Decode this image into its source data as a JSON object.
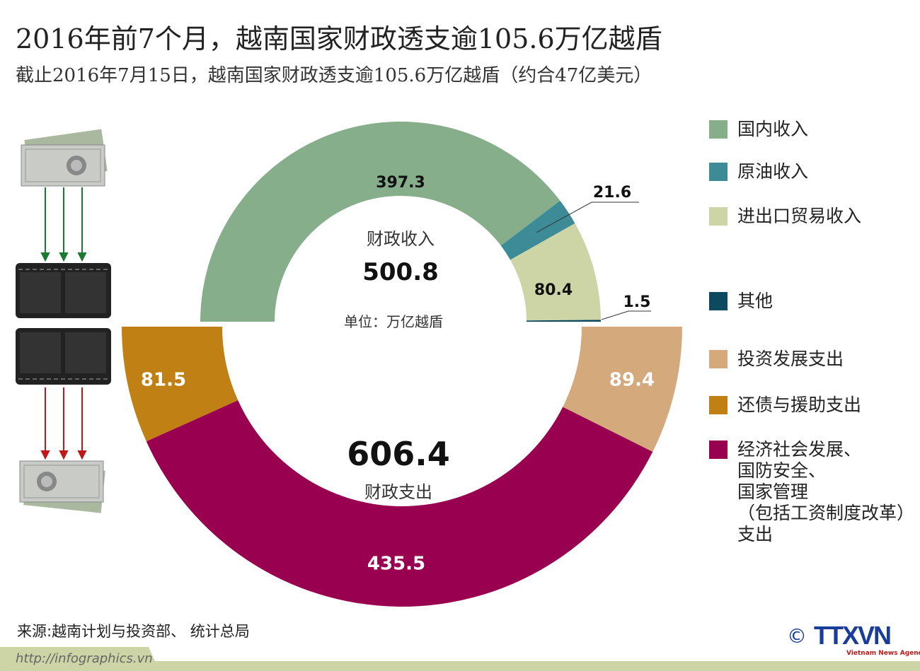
{
  "title": "2016年前7个月，越南国家财政透支逾105.6万亿越盾",
  "subtitle": "截止2016年7月15日，越南国家财政透支逾105.6万亿越盾（约合47亿美元）",
  "chart_data": [
    {
      "type": "pie",
      "variant": "half-donut-top",
      "title": "财政收入",
      "total": "500.8",
      "unit": "单位：万亿越盾",
      "categories": [
        "国内收入",
        "原油收入",
        "进出口贸易收入",
        "其他"
      ],
      "values": [
        397.3,
        21.6,
        80.4,
        1.5
      ],
      "labels": [
        "397.3",
        "21.6",
        "80.4",
        "1.5"
      ],
      "colors": [
        "#86ae8a",
        "#3c8b97",
        "#cdd5a6",
        "#0d4a60"
      ]
    },
    {
      "type": "pie",
      "variant": "half-donut-bottom",
      "title": "财政支出",
      "total": "606.4",
      "categories": [
        "还债与援助支出",
        "经济社会发展、国防安全、国家管理（包括工资制度改革）支出",
        "投资发展支出"
      ],
      "values": [
        81.5,
        435.5,
        89.4
      ],
      "labels": [
        "81.5",
        "435.5",
        "89.4"
      ],
      "colors": [
        "#c08013",
        "#990050",
        "#d4a97b"
      ]
    }
  ],
  "legend": [
    {
      "label": "国内收入",
      "color": "#86ae8a"
    },
    {
      "label": "原油收入",
      "color": "#3c8b97"
    },
    {
      "label": "进出口贸易收入",
      "color": "#cdd5a6"
    },
    {
      "label": "其他",
      "color": "#0d4a60"
    },
    {
      "label": "投资发展支出",
      "color": "#d4a97b"
    },
    {
      "label": "还债与援助支出",
      "color": "#c08013"
    },
    {
      "label": "经济社会发展、\n国防安全、\n国家管理\n（包括工资制度改革）\n支出",
      "color": "#990050"
    }
  ],
  "footer": {
    "source": "来源:越南计划与投资部、 统计总局",
    "url": "http://infographics.vn",
    "logo_text": "TTXVN",
    "logo_sub": "Vietnam News Agency",
    "copyright": "©"
  }
}
